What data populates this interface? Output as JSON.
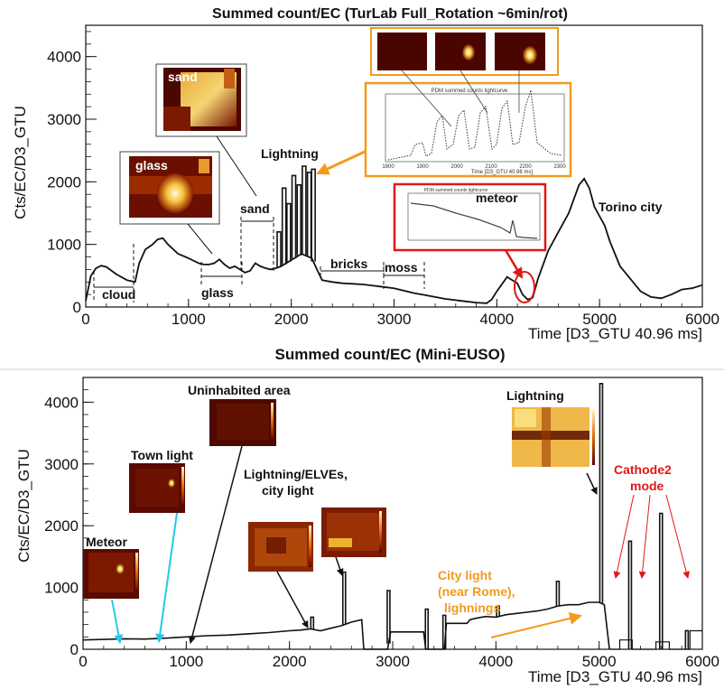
{
  "chart_data": [
    {
      "type": "line",
      "title": "Summed count/EC (TurLab Full_Rotation ~6min/rot)",
      "xlabel": "Time [D3_GTU 40.96 ms]",
      "ylabel": "Cts/EC/D3_GTU",
      "xlim": [
        0,
        6000
      ],
      "ylim": [
        0,
        4500
      ],
      "x_ticks": [
        "0",
        "1000",
        "2000",
        "3000",
        "4000",
        "5000",
        "6000"
      ],
      "y_ticks": [
        "0",
        "1000",
        "2000",
        "3000",
        "4000"
      ],
      "series": [
        {
          "x": [
            0,
            50,
            100,
            150,
            200,
            300,
            400,
            480,
            520,
            580,
            650,
            700,
            750,
            800,
            900,
            1000,
            1100,
            1150,
            1200,
            1250,
            1300,
            1350,
            1400,
            1450,
            1500,
            1550,
            1600,
            1650,
            1700,
            1750,
            1800,
            1850,
            1900,
            2000,
            2100,
            2200,
            2250,
            2300,
            2400,
            2500,
            2600,
            2700,
            2800,
            2900,
            3000,
            3100,
            3200,
            3300,
            3400,
            3500,
            3600,
            3700,
            3800,
            3900,
            3950,
            4000,
            4100,
            4200,
            4250,
            4300,
            4350,
            4400,
            4500,
            4600,
            4700,
            4800,
            4850,
            4900,
            4950,
            5000,
            5050,
            5100,
            5150,
            5200,
            5300,
            5400,
            5500,
            5600,
            5700,
            5800,
            5900,
            6000
          ],
          "y": [
            100,
            500,
            620,
            660,
            640,
            520,
            430,
            400,
            700,
            920,
            1000,
            1080,
            1100,
            1000,
            850,
            780,
            700,
            680,
            680,
            700,
            760,
            680,
            620,
            650,
            600,
            550,
            580,
            700,
            650,
            620,
            600,
            620,
            650,
            750,
            850,
            780,
            600,
            430,
            400,
            380,
            370,
            360,
            340,
            320,
            300,
            260,
            220,
            190,
            160,
            130,
            110,
            90,
            70,
            60,
            120,
            250,
            480,
            380,
            200,
            120,
            150,
            450,
            900,
            1200,
            1500,
            1950,
            2050,
            1900,
            1600,
            1450,
            1300,
            1050,
            850,
            650,
            450,
            250,
            160,
            140,
            200,
            280,
            300,
            350
          ]
        }
      ],
      "spikes": {
        "x": [
          1880,
          1930,
          1975,
          2025,
          2075,
          2125,
          2175,
          2215
        ],
        "y": [
          1200,
          1900,
          1650,
          2100,
          1950,
          2250,
          2150,
          2200
        ]
      },
      "annotations": [
        "cloud",
        "glass",
        "sand",
        "Lightning",
        "bricks",
        "moss",
        "meteor",
        "Torino city"
      ],
      "inset_labels": [
        "sand",
        "glass",
        "meteor"
      ],
      "inset_curve_titles": [
        "PDM summed counts lightcurve",
        "PDM summed counts lightcurve"
      ],
      "inset_curve_xlabel": "Time [D3_GTU 40.96 ms]",
      "inset_curve_ticks": [
        "1800",
        "1900",
        "2000",
        "2100",
        "2200",
        "2300"
      ]
    },
    {
      "type": "line",
      "title": "Summed count/EC (Mini-EUSO)",
      "xlabel": "Time [D3_GTU 40.96 ms]",
      "ylabel": "Cts/EC/D3_GTU",
      "xlim": [
        0,
        6000
      ],
      "ylim": [
        0,
        4400
      ],
      "x_ticks": [
        "0",
        "1000",
        "2000",
        "3000",
        "4000",
        "5000",
        "6000"
      ],
      "y_ticks": [
        "0",
        "1000",
        "2000",
        "3000",
        "4000"
      ],
      "series": [
        {
          "x": [
            0,
            200,
            400,
            600,
            800,
            1000,
            1200,
            1400,
            1600,
            1800,
            2000,
            2100,
            2200,
            2300,
            2400,
            2500,
            2600,
            2700,
            2720,
            2950,
            2980,
            3300,
            3320,
            3500,
            3520,
            3720,
            3750,
            3800,
            3900,
            4000,
            4100,
            4200,
            4300,
            4400,
            4500,
            4600,
            4700,
            4800,
            4900,
            5000,
            5050,
            5100
          ],
          "y": [
            150,
            160,
            170,
            165,
            180,
            200,
            220,
            230,
            250,
            270,
            300,
            310,
            330,
            300,
            340,
            380,
            440,
            480,
            0,
            0,
            280,
            280,
            0,
            0,
            420,
            420,
            480,
            500,
            530,
            520,
            560,
            580,
            600,
            620,
            650,
            700,
            720,
            720,
            760,
            760,
            720,
            0
          ]
        }
      ],
      "spikes": {
        "x": [
          2220,
          2530,
          2960,
          3330,
          3500,
          4020,
          4600,
          5020,
          5300,
          5600,
          5850
        ],
        "y": [
          520,
          1250,
          950,
          650,
          550,
          700,
          1100,
          4300,
          1750,
          2200,
          300
        ]
      },
      "annotations": [
        "Meteor",
        "Town light",
        "Uninhabited area",
        "Lightning/ELVEs,",
        "city light",
        "Lightning",
        "City light",
        "(near Rome),",
        "lighnings",
        "Cathode2",
        "mode"
      ],
      "colors": {
        "cyan_arrow": "#22c8e8",
        "orange": "#f39a1e",
        "red": "#e01818"
      }
    }
  ]
}
